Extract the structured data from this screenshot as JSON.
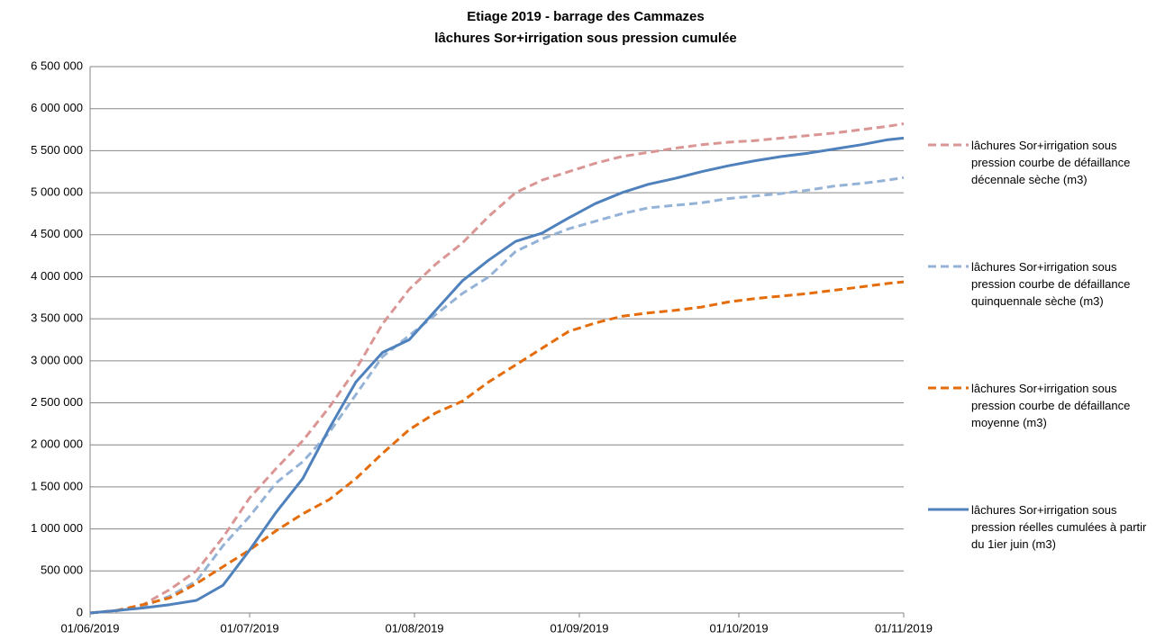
{
  "chart_data": {
    "type": "line",
    "title": "Etiage 2019 - barrage des Cammazes",
    "subtitle": "lâchures Sor+irrigation sous pression cumulée",
    "x": [
      "01/06/2019",
      "06/06/2019",
      "11/06/2019",
      "16/06/2019",
      "21/06/2019",
      "26/06/2019",
      "01/07/2019",
      "06/07/2019",
      "11/07/2019",
      "16/07/2019",
      "21/07/2019",
      "26/07/2019",
      "31/07/2019",
      "05/08/2019",
      "10/08/2019",
      "15/08/2019",
      "20/08/2019",
      "25/08/2019",
      "30/08/2019",
      "04/09/2019",
      "09/09/2019",
      "14/09/2019",
      "19/09/2019",
      "24/09/2019",
      "29/09/2019",
      "04/10/2019",
      "09/10/2019",
      "14/10/2019",
      "19/10/2019",
      "24/10/2019",
      "29/10/2019",
      "01/11/2019"
    ],
    "xlim": [
      "01/06/2019",
      "01/11/2019"
    ],
    "xticks": [
      "01/06/2019",
      "01/07/2019",
      "01/08/2019",
      "01/09/2019",
      "01/10/2019",
      "01/11/2019"
    ],
    "ylim": [
      0,
      6500000
    ],
    "yticks": [
      0,
      {
        "value": 500000,
        "label": "500 000"
      },
      {
        "value": 1000000,
        "label": "1 000 000"
      },
      {
        "value": 1500000,
        "label": "1 500 000"
      },
      {
        "value": 2000000,
        "label": "2 000 000"
      },
      {
        "value": 2500000,
        "label": "2 500 000"
      },
      {
        "value": 3000000,
        "label": "3 000 000"
      },
      {
        "value": 3500000,
        "label": "3 500 000"
      },
      {
        "value": 4000000,
        "label": "4 000 000"
      },
      {
        "value": 4500000,
        "label": "4 500 000"
      },
      {
        "value": 5000000,
        "label": "5 000 000"
      },
      {
        "value": 5500000,
        "label": "5 500 000"
      },
      {
        "value": 6000000,
        "label": "6 000 000"
      },
      {
        "value": 6500000,
        "label": "6 500 000"
      }
    ],
    "grid": true,
    "legend": "right",
    "series": [
      {
        "name": "lâchures Sor+irrigation sous pression courbe de défaillance décennale sèche (m3)",
        "color": "#d99694",
        "dashed": true,
        "values": [
          0,
          30000,
          100000,
          280000,
          500000,
          900000,
          1370000,
          1720000,
          2050000,
          2450000,
          2900000,
          3440000,
          3850000,
          4150000,
          4400000,
          4720000,
          5000000,
          5150000,
          5250000,
          5350000,
          5430000,
          5480000,
          5530000,
          5570000,
          5600000,
          5620000,
          5650000,
          5680000,
          5710000,
          5750000,
          5790000,
          5820000
        ]
      },
      {
        "name": "lâchures Sor+irrigation sous pression courbe de défaillance quinquennale sèche (m3)",
        "color": "#95b3d7",
        "dashed": true,
        "values": [
          0,
          25000,
          80000,
          200000,
          380000,
          800000,
          1150000,
          1550000,
          1800000,
          2150000,
          2600000,
          3050000,
          3300000,
          3550000,
          3800000,
          4000000,
          4300000,
          4450000,
          4570000,
          4660000,
          4750000,
          4820000,
          4850000,
          4880000,
          4930000,
          4960000,
          4990000,
          5030000,
          5080000,
          5110000,
          5150000,
          5180000
        ]
      },
      {
        "name": "lâchures Sor+irrigation sous pression courbe de défaillance moyenne (m3)",
        "color": "#e46c0a",
        "dashed": true,
        "values": [
          0,
          30000,
          100000,
          180000,
          350000,
          550000,
          750000,
          980000,
          1180000,
          1350000,
          1600000,
          1900000,
          2180000,
          2380000,
          2520000,
          2750000,
          2950000,
          3150000,
          3350000,
          3450000,
          3530000,
          3570000,
          3600000,
          3640000,
          3700000,
          3740000,
          3770000,
          3800000,
          3840000,
          3880000,
          3920000,
          3940000
        ]
      },
      {
        "name": "lâchures Sor+irrigation sous pression réelles cumulées à partir du 1ier juin (m3)",
        "color": "#4f81bd",
        "dashed": false,
        "values": [
          0,
          30000,
          60000,
          100000,
          150000,
          330000,
          750000,
          1200000,
          1600000,
          2200000,
          2750000,
          3100000,
          3250000,
          3600000,
          3950000,
          4200000,
          4420000,
          4520000,
          4700000,
          4870000,
          5000000,
          5100000,
          5170000,
          5250000,
          5320000,
          5380000,
          5430000,
          5470000,
          5520000,
          5570000,
          5630000,
          5650000
        ]
      }
    ]
  }
}
